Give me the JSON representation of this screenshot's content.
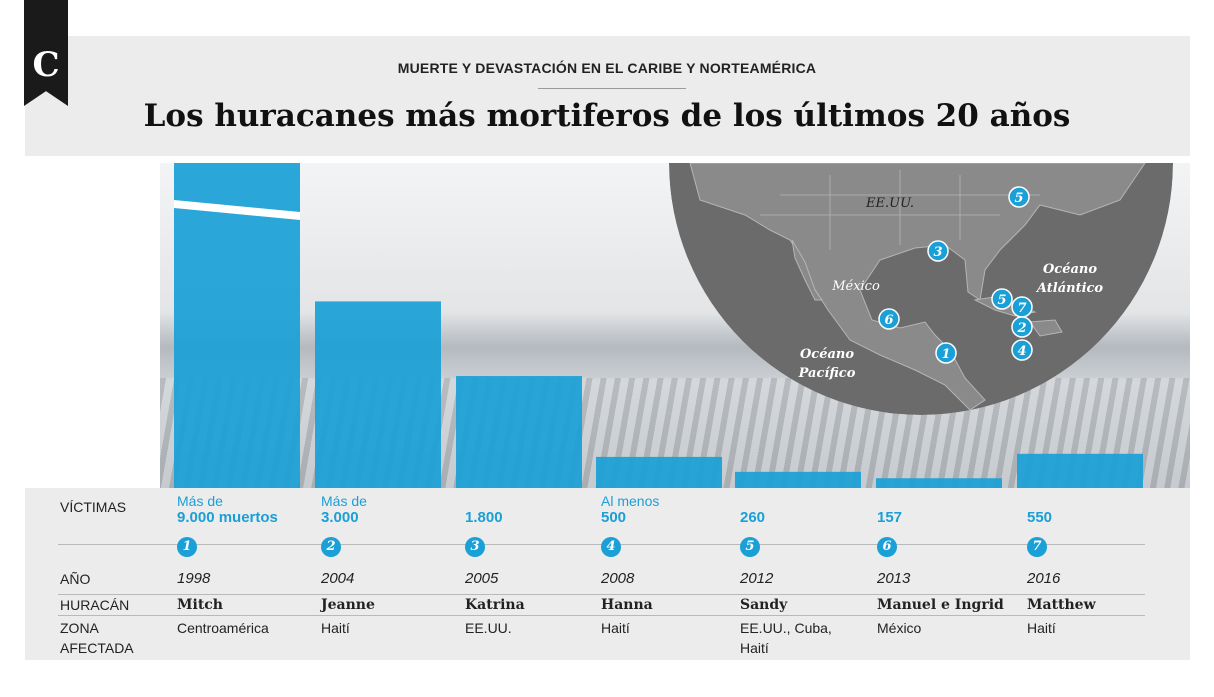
{
  "header": {
    "logo_letter": "C",
    "kicker": "MUERTE Y DEVASTACIÓN EN EL CARIBE Y NORTEAMÉRICA",
    "title": "Los huracanes más mortiferos de los últimos 20 años"
  },
  "colors": {
    "bar": "#1a9fd6",
    "map_land": "#6f6f6f",
    "header_bg": "#ececec"
  },
  "table": {
    "labels": {
      "victimas": "VÍCTIMAS",
      "anio": "AÑO",
      "huracan": "HURACÁN",
      "zona": [
        "ZONA",
        "AFECTADA"
      ]
    }
  },
  "chart_data": {
    "type": "bar",
    "title": "Los huracanes más mortiferos de los últimos 20 años",
    "categories": [
      "Mitch",
      "Jeanne",
      "Katrina",
      "Hanna",
      "Sandy",
      "Manuel e Ingrid",
      "Matthew"
    ],
    "values": [
      9000,
      3000,
      1800,
      500,
      260,
      157,
      550
    ],
    "hurricanes": [
      {
        "num": "1",
        "name": "Mitch",
        "year": "1998",
        "victims_prefix": "Más de",
        "victims": "9.000 muertos",
        "zone": [
          "Centroamérica"
        ]
      },
      {
        "num": "2",
        "name": "Jeanne",
        "year": "2004",
        "victims_prefix": "Más de",
        "victims": "3.000",
        "zone": [
          "Haití"
        ]
      },
      {
        "num": "3",
        "name": "Katrina",
        "year": "2005",
        "victims_prefix": "",
        "victims": "1.800",
        "zone": [
          "EE.UU."
        ]
      },
      {
        "num": "4",
        "name": "Hanna",
        "year": "2008",
        "victims_prefix": "Al menos",
        "victims": "500",
        "zone": [
          "Haití"
        ]
      },
      {
        "num": "5",
        "name": "Sandy",
        "year": "2012",
        "victims_prefix": "",
        "victims": "260",
        "zone": [
          "EE.UU., Cuba,",
          "Haití"
        ]
      },
      {
        "num": "6",
        "name": "Manuel e Ingrid",
        "year": "2013",
        "victims_prefix": "",
        "victims": "157",
        "zone": [
          "México"
        ]
      },
      {
        "num": "7",
        "name": "Matthew",
        "year": "2016",
        "victims_prefix": "",
        "victims": "550",
        "zone": [
          "Haití"
        ]
      }
    ]
  },
  "map": {
    "labels": {
      "usa": "EE.UU.",
      "mexico": "México",
      "atlantic": [
        "Océano",
        "Atlántico"
      ],
      "pacific": [
        "Océano",
        "Pacífico"
      ]
    },
    "markers": [
      "5",
      "3",
      "5",
      "7",
      "2",
      "6",
      "1",
      "4"
    ]
  }
}
